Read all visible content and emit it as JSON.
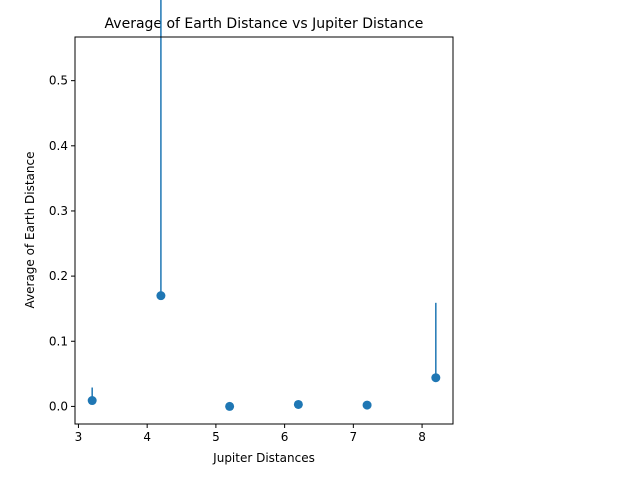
{
  "chart_data": {
    "type": "scatter",
    "title": "Average of Earth Distance vs Jupiter Distance",
    "xlabel": "Jupiter Distances",
    "ylabel": "Average of Earth Distance",
    "xlim": [
      2.95,
      8.45
    ],
    "ylim": [
      -0.027,
      0.567
    ],
    "xticks": [
      3,
      4,
      5,
      6,
      7,
      8
    ],
    "yticks": [
      0.0,
      0.1,
      0.2,
      0.3,
      0.4,
      0.5
    ],
    "ytick_labels": [
      "0.0",
      "0.1",
      "0.2",
      "0.3",
      "0.4",
      "0.5"
    ],
    "grid": false,
    "color": "#1f77b4",
    "points": [
      {
        "x": 3.2,
        "y": 0.009,
        "err_low": 0.0,
        "err_high": 0.02
      },
      {
        "x": 4.2,
        "y": 0.17,
        "err_low": 0.0,
        "err_high": 0.54
      },
      {
        "x": 5.2,
        "y": 0.0,
        "err_low": 0.0,
        "err_high": 0.0
      },
      {
        "x": 6.2,
        "y": 0.003,
        "err_low": 0.003,
        "err_high": 0.003
      },
      {
        "x": 7.2,
        "y": 0.002,
        "err_low": 0.002,
        "err_high": 0.002
      },
      {
        "x": 8.2,
        "y": 0.044,
        "err_low": 0.0,
        "err_high": 0.115
      }
    ]
  }
}
